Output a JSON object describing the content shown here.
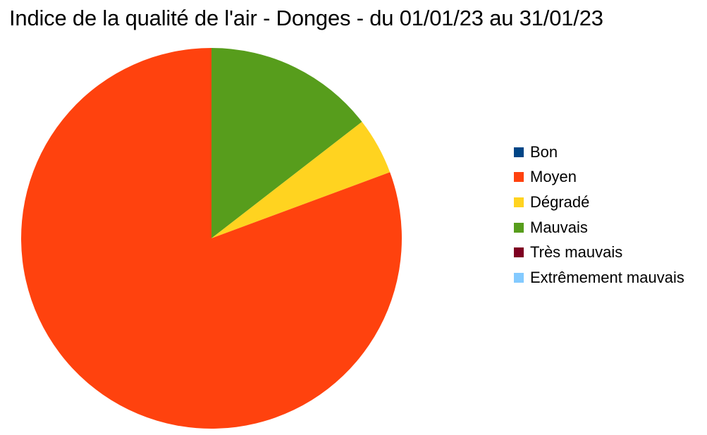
{
  "chart_data": {
    "type": "pie",
    "title": "Indice de la qualité de l'air - Donges - du 01/01/23 au 31/01/23",
    "categories": [
      "Bon",
      "Moyen",
      "Dégradé",
      "Mauvais",
      "Très mauvais",
      "Extrêmement mauvais"
    ],
    "values": [
      0,
      25,
      1.5,
      4.5,
      0,
      0
    ],
    "colors": [
      "#004586",
      "#ff420e",
      "#ffd320",
      "#579d1c",
      "#7e0021",
      "#83caff"
    ],
    "slice_order": [
      3,
      2,
      1,
      0,
      4,
      5
    ],
    "start_angle": "12 o'clock",
    "direction": "clockwise",
    "legend_position": "right"
  }
}
